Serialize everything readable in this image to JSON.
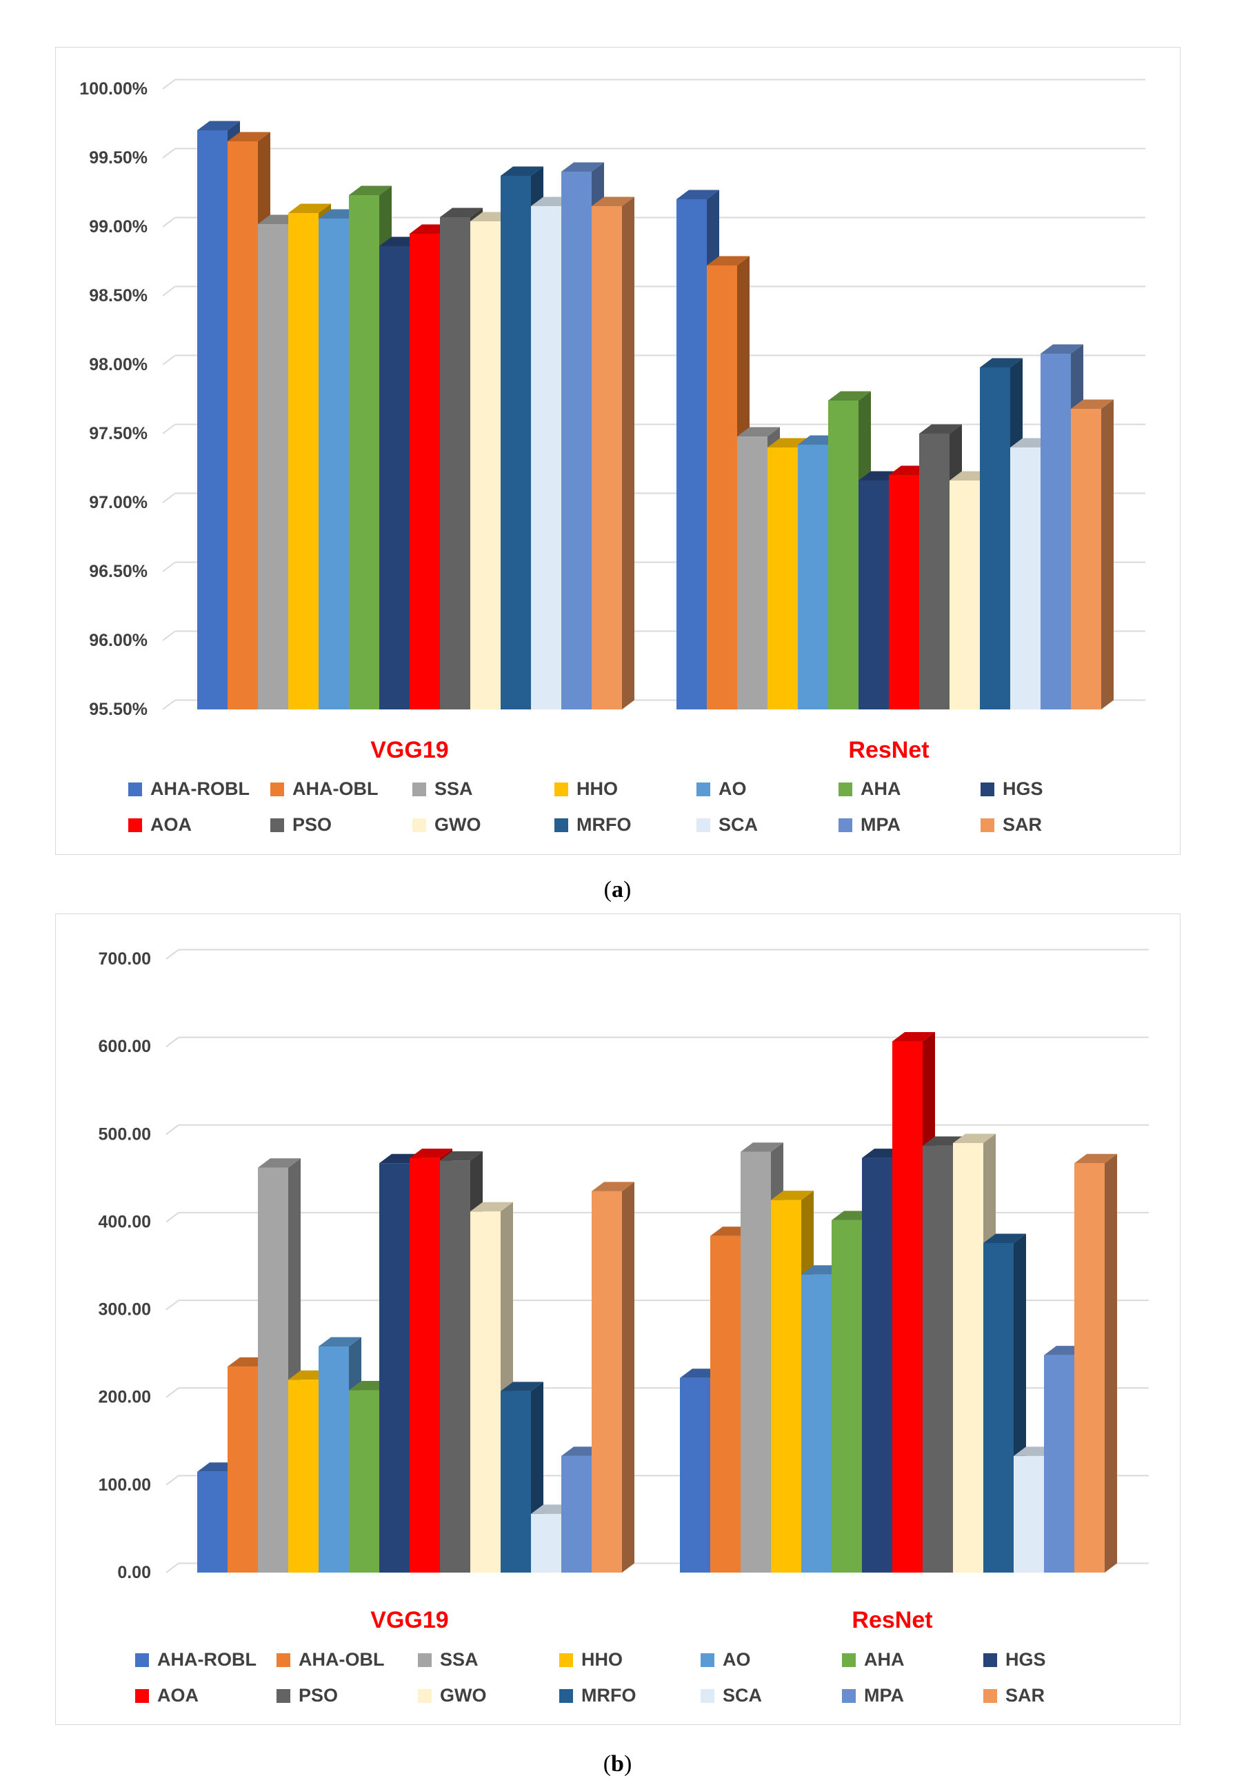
{
  "legend_items": [
    {
      "name": "AHA-ROBL",
      "color": "#4472c4"
    },
    {
      "name": "AHA-OBL",
      "color": "#ed7d31"
    },
    {
      "name": "SSA",
      "color": "#a5a5a5"
    },
    {
      "name": "HHO",
      "color": "#ffc000"
    },
    {
      "name": "AO",
      "color": "#5b9bd5"
    },
    {
      "name": "AHA",
      "color": "#70ad47"
    },
    {
      "name": "HGS",
      "color": "#264478"
    },
    {
      "name": "AOA",
      "color": "#ff0000"
    },
    {
      "name": "PSO",
      "color": "#636363"
    },
    {
      "name": "GWO",
      "color": "#fff2cc"
    },
    {
      "name": "MRFO",
      "color": "#255e91"
    },
    {
      "name": "SCA",
      "color": "#deebf7"
    },
    {
      "name": "MPA",
      "color": "#698ed0"
    },
    {
      "name": "SAR",
      "color": "#f1975a"
    }
  ],
  "captions": {
    "a": "a",
    "b": "b"
  },
  "chart_data": [
    {
      "id": "a",
      "type": "bar",
      "title": "",
      "xlabel": "",
      "ylabel": "",
      "categories": [
        "VGG19",
        "ResNet"
      ],
      "ylim": [
        95.5,
        100.0
      ],
      "yticks": [
        95.5,
        96.0,
        96.5,
        97.0,
        97.5,
        98.0,
        98.5,
        99.0,
        99.5,
        100.0
      ],
      "ytick_labels": [
        "95.50%",
        "96.00%",
        "96.50%",
        "97.00%",
        "97.50%",
        "98.00%",
        "98.50%",
        "99.00%",
        "99.50%",
        "100.00%"
      ],
      "grid": true,
      "legend": "bottom",
      "series": [
        {
          "name": "AHA-ROBL",
          "values": [
            99.7,
            99.2
          ]
        },
        {
          "name": "AHA-OBL",
          "values": [
            99.62,
            98.72
          ]
        },
        {
          "name": "SSA",
          "values": [
            99.02,
            97.48
          ]
        },
        {
          "name": "HHO",
          "values": [
            99.1,
            97.4
          ]
        },
        {
          "name": "AO",
          "values": [
            99.06,
            97.42
          ]
        },
        {
          "name": "AHA",
          "values": [
            99.23,
            97.74
          ]
        },
        {
          "name": "HGS",
          "values": [
            98.86,
            97.16
          ]
        },
        {
          "name": "AOA",
          "values": [
            98.95,
            97.2
          ]
        },
        {
          "name": "PSO",
          "values": [
            99.07,
            97.5
          ]
        },
        {
          "name": "GWO",
          "values": [
            99.04,
            97.16
          ]
        },
        {
          "name": "MRFO",
          "values": [
            99.37,
            97.98
          ]
        },
        {
          "name": "SCA",
          "values": [
            99.15,
            97.4
          ]
        },
        {
          "name": "MPA",
          "values": [
            99.4,
            98.08
          ]
        },
        {
          "name": "SAR",
          "values": [
            99.15,
            97.68
          ]
        }
      ]
    },
    {
      "id": "b",
      "type": "bar",
      "title": "",
      "xlabel": "",
      "ylabel": "",
      "categories": [
        "VGG19",
        "ResNet"
      ],
      "ylim": [
        0,
        700
      ],
      "yticks": [
        0,
        100,
        200,
        300,
        400,
        500,
        600,
        700
      ],
      "ytick_labels": [
        "0.00",
        "100.00",
        "200.00",
        "300.00",
        "400.00",
        "500.00",
        "600.00",
        "700.00"
      ],
      "grid": true,
      "legend": "bottom",
      "series": [
        {
          "name": "AHA-ROBL",
          "values": [
            115,
            222
          ]
        },
        {
          "name": "AHA-OBL",
          "values": [
            235,
            384
          ]
        },
        {
          "name": "SSA",
          "values": [
            462,
            480
          ]
        },
        {
          "name": "HHO",
          "values": [
            220,
            425
          ]
        },
        {
          "name": "AO",
          "values": [
            258,
            340
          ]
        },
        {
          "name": "AHA",
          "values": [
            208,
            402
          ]
        },
        {
          "name": "HGS",
          "values": [
            467,
            473
          ]
        },
        {
          "name": "AOA",
          "values": [
            473,
            606
          ]
        },
        {
          "name": "PSO",
          "values": [
            470,
            487
          ]
        },
        {
          "name": "GWO",
          "values": [
            412,
            490
          ]
        },
        {
          "name": "MRFO",
          "values": [
            207,
            376
          ]
        },
        {
          "name": "SCA",
          "values": [
            67,
            133
          ]
        },
        {
          "name": "MPA",
          "values": [
            133,
            248
          ]
        },
        {
          "name": "SAR",
          "values": [
            435,
            467
          ]
        }
      ]
    }
  ]
}
